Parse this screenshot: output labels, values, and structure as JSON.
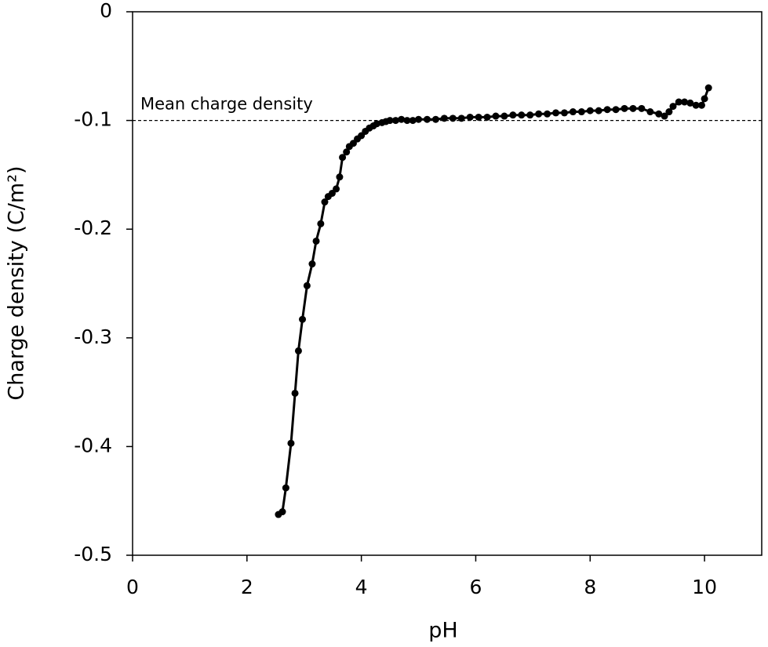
{
  "chart_data": {
    "type": "line",
    "x_label": "pH",
    "y_label": "Charge density (C/m²)",
    "color": "#000000",
    "markers": true,
    "x": [
      2.55,
      2.62,
      2.68,
      2.77,
      2.84,
      2.9,
      2.97,
      3.05,
      3.14,
      3.21,
      3.29,
      3.36,
      3.42,
      3.49,
      3.56,
      3.62,
      3.67,
      3.74,
      3.79,
      3.86,
      3.93,
      4.0,
      4.07,
      4.14,
      4.21,
      4.27,
      4.36,
      4.43,
      4.5,
      4.6,
      4.7,
      4.8,
      4.9,
      5.0,
      5.15,
      5.3,
      5.45,
      5.6,
      5.75,
      5.9,
      6.05,
      6.2,
      6.35,
      6.5,
      6.65,
      6.8,
      6.95,
      7.1,
      7.25,
      7.4,
      7.55,
      7.7,
      7.85,
      8.0,
      8.15,
      8.3,
      8.45,
      8.6,
      8.75,
      8.9,
      9.05,
      9.2,
      9.3,
      9.38,
      9.45,
      9.55,
      9.65,
      9.75,
      9.85,
      9.95,
      10.0,
      10.07
    ],
    "values": [
      -0.4625,
      -0.46,
      -0.438,
      -0.397,
      -0.351,
      -0.312,
      -0.283,
      -0.252,
      -0.232,
      -0.211,
      -0.195,
      -0.175,
      -0.17,
      -0.167,
      -0.163,
      -0.152,
      -0.134,
      -0.129,
      -0.124,
      -0.121,
      -0.117,
      -0.114,
      -0.11,
      -0.107,
      -0.105,
      -0.103,
      -0.102,
      -0.101,
      -0.1,
      -0.1,
      -0.099,
      -0.1,
      -0.1,
      -0.099,
      -0.099,
      -0.099,
      -0.098,
      -0.098,
      -0.098,
      -0.097,
      -0.097,
      -0.097,
      -0.096,
      -0.096,
      -0.095,
      -0.095,
      -0.095,
      -0.094,
      -0.094,
      -0.093,
      -0.093,
      -0.092,
      -0.092,
      -0.091,
      -0.091,
      -0.09,
      -0.09,
      -0.089,
      -0.089,
      -0.089,
      -0.092,
      -0.094,
      -0.096,
      -0.092,
      -0.087,
      -0.083,
      -0.083,
      -0.084,
      -0.086,
      -0.086,
      -0.08,
      -0.07
    ],
    "reference_line": {
      "value": -0.1,
      "label": "Mean charge density"
    },
    "xlim": [
      0,
      11
    ],
    "xticks": [
      0,
      2,
      4,
      6,
      8,
      10
    ],
    "ylim": [
      -0.5,
      0
    ],
    "yticks": [
      0,
      -0.1,
      -0.2,
      -0.3,
      -0.4,
      -0.5
    ]
  }
}
